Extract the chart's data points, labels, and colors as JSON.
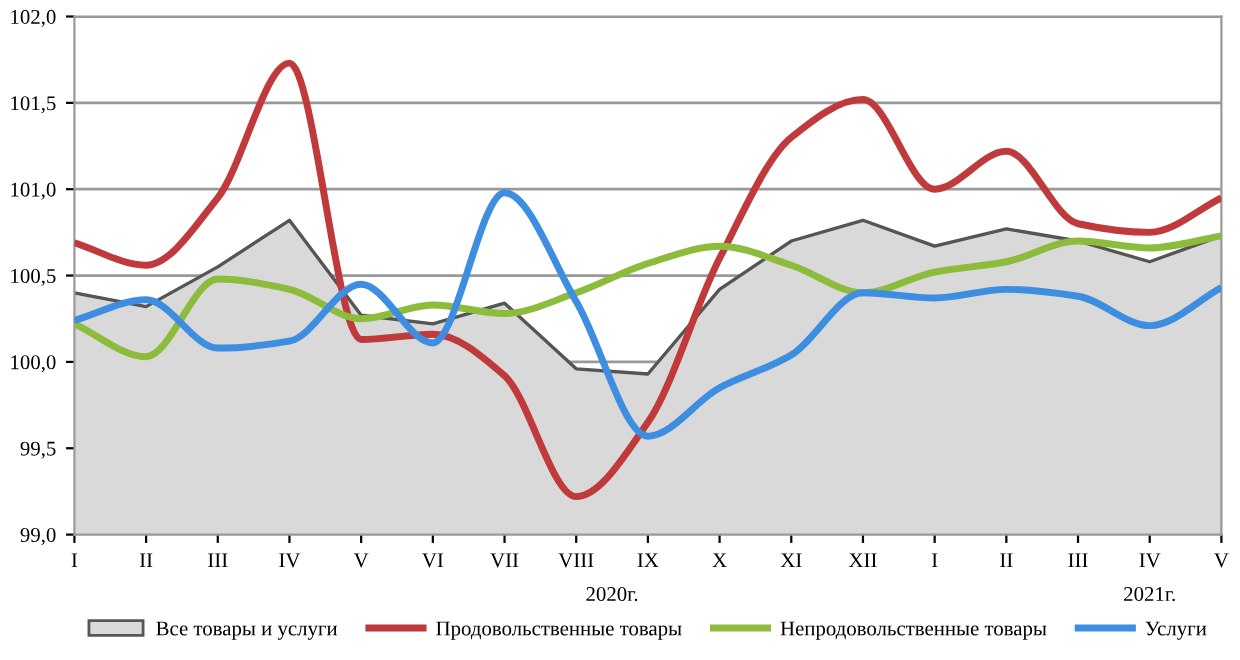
{
  "chart_data": {
    "type": "line",
    "categories": [
      "I",
      "II",
      "III",
      "IV",
      "V",
      "VI",
      "VII",
      "VIII",
      "IX",
      "X",
      "XI",
      "XII",
      "I",
      "II",
      "III",
      "IV",
      "V"
    ],
    "series": [
      {
        "name": "Все товары и услуги",
        "type": "area",
        "color": "#d9d9d9",
        "values": [
          100.4,
          100.32,
          100.55,
          100.82,
          100.27,
          100.22,
          100.34,
          99.96,
          99.93,
          100.42,
          100.7,
          100.82,
          100.67,
          100.77,
          100.7,
          100.58,
          100.73
        ]
      },
      {
        "name": "Продовольственные товары",
        "color": "#c0393b",
        "values": [
          100.69,
          100.56,
          100.95,
          101.73,
          100.13,
          100.16,
          99.92,
          99.22,
          99.65,
          100.6,
          101.3,
          101.52,
          101.0,
          101.22,
          100.8,
          100.75,
          100.95
        ]
      },
      {
        "name": "Непродовольственные товары",
        "color": "#8dbb3c",
        "values": [
          100.22,
          100.03,
          100.48,
          100.42,
          100.25,
          100.33,
          100.28,
          100.4,
          100.57,
          100.67,
          100.56,
          100.4,
          100.52,
          100.58,
          100.7,
          100.66,
          100.73
        ]
      },
      {
        "name": "Услуги",
        "color": "#3d8ee0",
        "values": [
          100.24,
          100.36,
          100.08,
          100.12,
          100.45,
          100.11,
          100.98,
          100.35,
          99.57,
          99.85,
          100.04,
          100.4,
          100.37,
          100.42,
          100.38,
          100.21,
          100.43
        ]
      }
    ],
    "ylim": [
      99.0,
      102.0
    ],
    "yticks": [
      {
        "value": 99.0,
        "label": "99,0"
      },
      {
        "value": 99.5,
        "label": "99,5"
      },
      {
        "value": 100.0,
        "label": "100,0"
      },
      {
        "value": 100.5,
        "label": "100,5"
      },
      {
        "value": 101.0,
        "label": "101,0"
      },
      {
        "value": 101.5,
        "label": "101,5"
      },
      {
        "value": 102.0,
        "label": "102,0"
      }
    ],
    "grid": "y",
    "legend": "bottom",
    "annotations": [
      "2020г.",
      "2021г."
    ]
  }
}
